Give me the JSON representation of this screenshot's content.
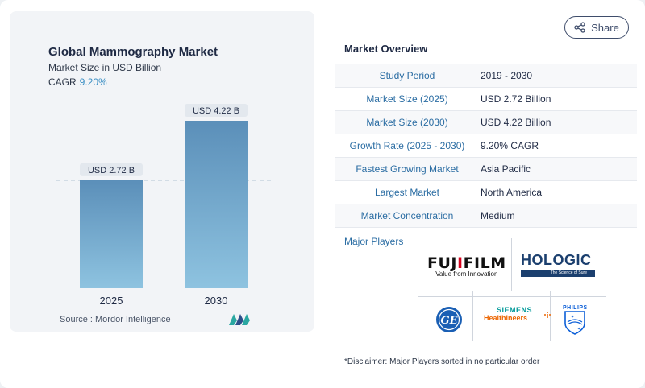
{
  "header": {
    "share_label": "Share"
  },
  "chart": {
    "title": "Global Mammography Market",
    "subtitle": "Market Size in USD Billion",
    "cagr_label": "CAGR",
    "cagr_value": "9.20%",
    "source": "Source :  Mordor Intelligence"
  },
  "chart_data": {
    "type": "bar",
    "title": "Global Mammography Market",
    "subtitle": "Market Size in USD Billion",
    "categories": [
      "2025",
      "2030"
    ],
    "values": [
      2.72,
      4.22
    ],
    "data_labels": [
      "USD 2.72 B",
      "USD 4.22 B"
    ],
    "ylabel": "",
    "xlabel": "",
    "ylim": [
      0,
      4.22
    ],
    "grid": false,
    "reference_line": "dashed line at 2025 value",
    "colors": {
      "bar_top": "#5b8fb9",
      "bar_bottom": "#8ec3e0",
      "label_bg": "#e3e8ee"
    }
  },
  "overview": {
    "title": "Market Overview",
    "rows": [
      {
        "label": "Study Period",
        "value": "2019 - 2030"
      },
      {
        "label": "Market Size (2025)",
        "value": "USD 2.72 Billion"
      },
      {
        "label": "Market Size (2030)",
        "value": "USD 4.22 Billion"
      },
      {
        "label": "Growth Rate (2025 - 2030)",
        "value": "9.20% CAGR"
      },
      {
        "label": "Fastest Growing Market",
        "value": "Asia Pacific"
      },
      {
        "label": "Largest Market",
        "value": "North America"
      },
      {
        "label": "Market Concentration",
        "value": "Medium"
      }
    ]
  },
  "players": {
    "title": "Major Players",
    "logos": {
      "fujifilm_name": "FUJIFILM",
      "fujifilm_tagline": "Value from Innovation",
      "hologic_name": "HOLOGIC",
      "hologic_tagline": "The Science of Sure",
      "ge": "GE",
      "siemens_name": "SIEMENS",
      "siemens_sub": "Healthineers",
      "philips": "PHILIPS"
    }
  },
  "disclaimer": "*Disclaimer: Major Players sorted in no particular order"
}
